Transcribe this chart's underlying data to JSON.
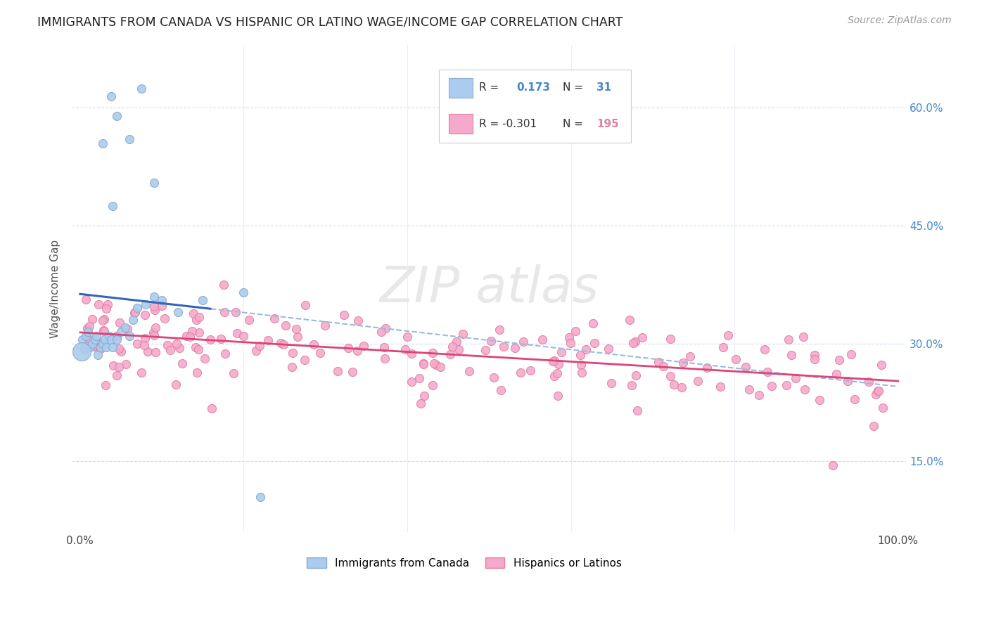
{
  "title": "IMMIGRANTS FROM CANADA VS HISPANIC OR LATINO WAGE/INCOME GAP CORRELATION CHART",
  "source": "Source: ZipAtlas.com",
  "ylabel": "Wage/Income Gap",
  "canada_color": "#aaccee",
  "canada_edge_color": "#88aacc",
  "hispanic_color": "#f5aacc",
  "hispanic_edge_color": "#e080a0",
  "canada_R": 0.173,
  "canada_N": 31,
  "hispanic_R": -0.301,
  "hispanic_N": 195,
  "canada_line_color": "#3366bb",
  "canada_dash_color": "#99bbdd",
  "hispanic_line_color": "#dd4477",
  "bg_color": "#ffffff",
  "right_tick_color": "#4488cc",
  "watermark_color": "#e8e8e8",
  "legend_border_color": "#cccccc"
}
